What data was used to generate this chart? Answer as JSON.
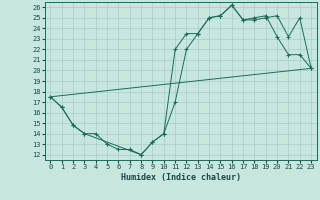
{
  "title": "",
  "xlabel": "Humidex (Indice chaleur)",
  "background_color": "#c8e6e0",
  "grid_color": "#9cc8c0",
  "line_color": "#1a6b5a",
  "xlim": [
    -0.5,
    23.5
  ],
  "ylim": [
    11.5,
    26.5
  ],
  "xticks": [
    0,
    1,
    2,
    3,
    4,
    5,
    6,
    7,
    8,
    9,
    10,
    11,
    12,
    13,
    14,
    15,
    16,
    17,
    18,
    19,
    20,
    21,
    22,
    23
  ],
  "yticks": [
    12,
    13,
    14,
    15,
    16,
    17,
    18,
    19,
    20,
    21,
    22,
    23,
    24,
    25,
    26
  ],
  "line1_x": [
    0,
    1,
    2,
    3,
    4,
    5,
    6,
    7,
    8,
    9,
    10,
    11,
    12,
    13,
    14,
    15,
    16,
    17,
    18,
    19,
    20,
    21,
    22,
    23
  ],
  "line1_y": [
    17.5,
    16.5,
    14.8,
    14.0,
    14.0,
    13.0,
    12.5,
    12.5,
    12.0,
    13.2,
    14.0,
    22.0,
    23.5,
    23.5,
    25.0,
    25.2,
    26.2,
    24.8,
    25.0,
    25.2,
    23.2,
    21.5,
    21.5,
    20.2
  ],
  "line2_x": [
    0,
    1,
    2,
    3,
    8,
    9,
    10,
    11,
    12,
    13,
    14,
    15,
    16,
    17,
    18,
    19,
    20,
    21,
    22,
    23
  ],
  "line2_y": [
    17.5,
    16.5,
    14.8,
    14.0,
    12.0,
    13.2,
    14.0,
    17.0,
    22.0,
    23.5,
    25.0,
    25.2,
    26.2,
    24.8,
    24.8,
    25.0,
    25.2,
    23.2,
    25.0,
    20.2
  ],
  "line3_x": [
    0,
    23
  ],
  "line3_y": [
    17.5,
    20.2
  ]
}
